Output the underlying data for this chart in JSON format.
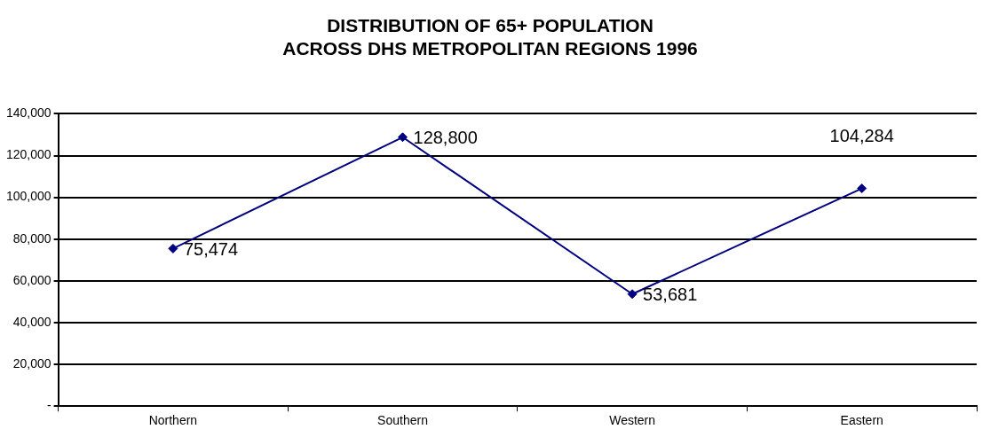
{
  "chart_data": {
    "type": "line",
    "title": "DISTRIBUTION OF 65+ POPULATION ACROSS DHS METROPOLITAN REGIONS 1996",
    "categories": [
      "Northern",
      "Southern",
      "Western",
      "Eastern"
    ],
    "series": [
      {
        "color": "#000080",
        "values": [
          75474,
          128800,
          53681,
          104284
        ],
        "value_labels": [
          "75,474",
          "128,800",
          "53,681",
          "104,284"
        ]
      }
    ],
    "ylim": [
      0,
      140000
    ],
    "yticks": [
      {
        "value": 0,
        "label": "-"
      },
      {
        "value": 20000,
        "label": "20,000"
      },
      {
        "value": 40000,
        "label": "40,000"
      },
      {
        "value": 60000,
        "label": "60,000"
      },
      {
        "value": 80000,
        "label": "80,000"
      },
      {
        "value": 100000,
        "label": "100,000"
      },
      {
        "value": 120000,
        "label": "120,000"
      },
      {
        "value": 140000,
        "label": "140,000"
      }
    ],
    "grid": "y",
    "legend": false,
    "marker": "diamond",
    "line_style": "solid"
  }
}
